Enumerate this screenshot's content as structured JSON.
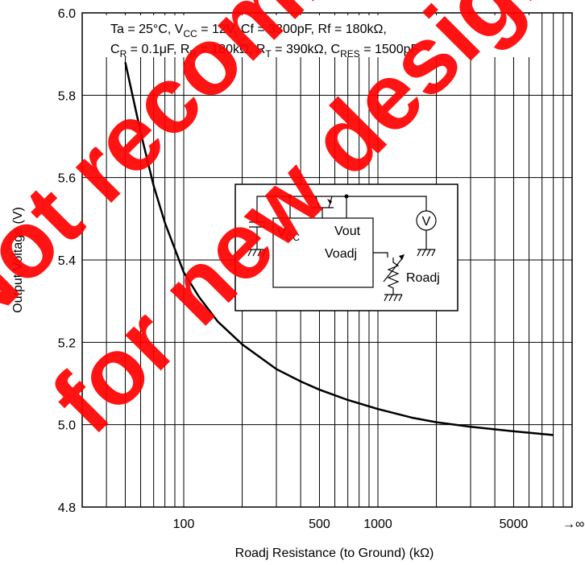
{
  "chart_data": {
    "type": "line",
    "title": "",
    "xlabel": "Roadj Resistance (to Ground) (kΩ)",
    "ylabel": "Output Voltage (V)",
    "x_scale": "log",
    "xlim": [
      30,
      10000
    ],
    "ylim": [
      4.8,
      6.0
    ],
    "x_tick_labels": [
      {
        "value": 100,
        "label": "100"
      },
      {
        "value": 500,
        "label": "500"
      },
      {
        "value": 1000,
        "label": "1000"
      },
      {
        "value": 5000,
        "label": "5000"
      }
    ],
    "x_end_label": "→∞",
    "y_ticks": [
      {
        "value": 4.8,
        "label": "4.8"
      },
      {
        "value": 5.0,
        "label": "5.0"
      },
      {
        "value": 5.2,
        "label": "5.2"
      },
      {
        "value": 5.4,
        "label": "5.4"
      },
      {
        "value": 5.6,
        "label": "5.6"
      },
      {
        "value": 5.8,
        "label": "5.8"
      },
      {
        "value": 6.0,
        "label": "6.0"
      }
    ],
    "grid": true,
    "series": [
      {
        "x": [
          50,
          60,
          70,
          80,
          100,
          120,
          150,
          200,
          300,
          400,
          500,
          700,
          1000,
          1500,
          2000,
          3000,
          5000,
          8000
        ],
        "y": [
          5.88,
          5.71,
          5.58,
          5.49,
          5.37,
          5.31,
          5.25,
          5.195,
          5.135,
          5.105,
          5.085,
          5.06,
          5.038,
          5.017,
          5.006,
          4.995,
          4.984,
          4.975
        ]
      }
    ],
    "conditions": {
      "line1": [
        {
          "text": "Ta = 25°C, V"
        },
        {
          "text": "CC",
          "sub": true
        },
        {
          "text": " = 12V, Cf = 3300pF, Rf = 180kΩ,"
        }
      ],
      "line2": [
        {
          "text": "C"
        },
        {
          "text": "R",
          "sub": true
        },
        {
          "text": " = 0.1μF, R"
        },
        {
          "text": "R",
          "sub": true
        },
        {
          "text": " = 180kΩ, R"
        },
        {
          "text": "T",
          "sub": true
        },
        {
          "text": " = 390kΩ, C"
        },
        {
          "text": "RES",
          "sub": true
        },
        {
          "text": " = 1500pF"
        }
      ]
    },
    "inset_circuit": {
      "vcc_main": "V",
      "vcc_sub": "CC",
      "vout": "Vout",
      "voadj": "Voadj",
      "roadj": "Roadj",
      "meter": "V"
    },
    "watermark": [
      "Not recommended",
      "for new design"
    ]
  }
}
